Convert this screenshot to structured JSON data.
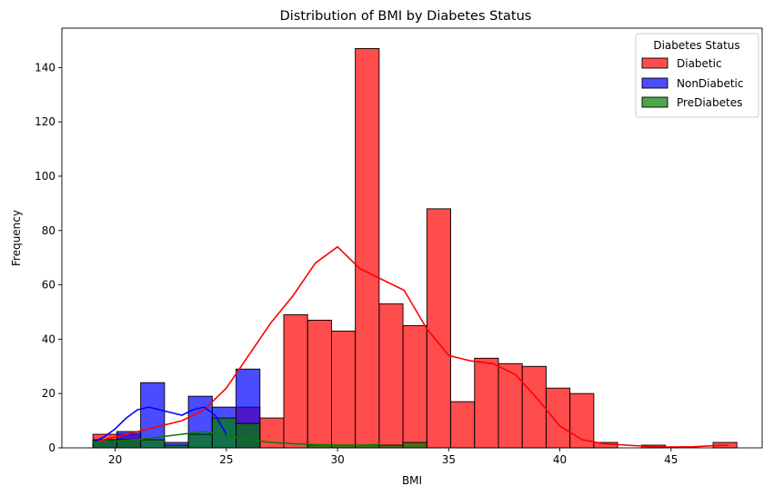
{
  "chart_data": {
    "type": "histogram",
    "title": "Distribution of BMI by Diabetes Status",
    "xlabel": "BMI",
    "ylabel": "Frequency",
    "xlim": [
      17.6,
      49.1
    ],
    "ylim": [
      0,
      154.5
    ],
    "xticks": [
      20,
      25,
      30,
      35,
      40,
      45
    ],
    "yticks": [
      0,
      20,
      40,
      60,
      80,
      100,
      120,
      140
    ],
    "grid": false,
    "legend": {
      "title": "Diabetes Status",
      "placement": "top-right"
    },
    "bin_start": 19.0,
    "bin_width": 1.0727,
    "series": [
      {
        "name": "Diabetic",
        "color": "#ff0000",
        "counts": [
          5,
          5,
          0,
          0,
          0,
          0,
          15,
          11,
          49,
          47,
          43,
          147,
          53,
          45,
          88,
          17,
          33,
          31,
          30,
          22,
          20,
          2,
          0,
          1,
          0,
          0,
          2
        ],
        "kde": [
          [
            19,
            2
          ],
          [
            20,
            4
          ],
          [
            21,
            6
          ],
          [
            22,
            8
          ],
          [
            23,
            10
          ],
          [
            24,
            14
          ],
          [
            25,
            22
          ],
          [
            26,
            34
          ],
          [
            27,
            46
          ],
          [
            28,
            56
          ],
          [
            29,
            68
          ],
          [
            30,
            74
          ],
          [
            31,
            66
          ],
          [
            32,
            62
          ],
          [
            33,
            58
          ],
          [
            34,
            44
          ],
          [
            35,
            34
          ],
          [
            36,
            32
          ],
          [
            37,
            31
          ],
          [
            38,
            27
          ],
          [
            39,
            18
          ],
          [
            40,
            8
          ],
          [
            41,
            3
          ],
          [
            42,
            1.5
          ],
          [
            43,
            1
          ],
          [
            44,
            0.5
          ],
          [
            45,
            0.3
          ],
          [
            46,
            0.4
          ],
          [
            47,
            0.8
          ],
          [
            47.6,
            1
          ]
        ]
      },
      {
        "name": "NonDiabetic",
        "color": "#0000ff",
        "counts": [
          3,
          6,
          24,
          2,
          19,
          15,
          29,
          0,
          0,
          0,
          0,
          0,
          0,
          0,
          0,
          0,
          0,
          0,
          0,
          0,
          0,
          0,
          0,
          0,
          0,
          0,
          0
        ],
        "kde": [
          [
            19,
            2
          ],
          [
            19.5,
            4
          ],
          [
            20,
            7
          ],
          [
            20.5,
            11
          ],
          [
            21,
            14
          ],
          [
            21.5,
            15
          ],
          [
            22,
            14
          ],
          [
            22.5,
            13
          ],
          [
            23,
            12
          ],
          [
            23.5,
            14
          ],
          [
            24,
            15
          ],
          [
            24.5,
            12
          ],
          [
            25,
            5
          ]
        ]
      },
      {
        "name": "PreDiabetes",
        "color": "#008000",
        "counts": [
          3,
          3,
          3,
          1,
          5,
          11,
          9,
          0,
          0,
          1,
          1,
          1,
          1,
          2,
          0,
          0,
          0,
          0,
          0,
          0,
          0,
          0,
          0,
          0,
          0,
          0,
          0
        ],
        "kde": [
          [
            19,
            2
          ],
          [
            20,
            2.5
          ],
          [
            21,
            3
          ],
          [
            22,
            4
          ],
          [
            23,
            5
          ],
          [
            24,
            6
          ],
          [
            25,
            4.5
          ],
          [
            26,
            3
          ],
          [
            27,
            2
          ],
          [
            28,
            1.5
          ],
          [
            29,
            1.2
          ],
          [
            30,
            1
          ],
          [
            31,
            1
          ],
          [
            31.9,
            1.2
          ]
        ]
      }
    ]
  }
}
